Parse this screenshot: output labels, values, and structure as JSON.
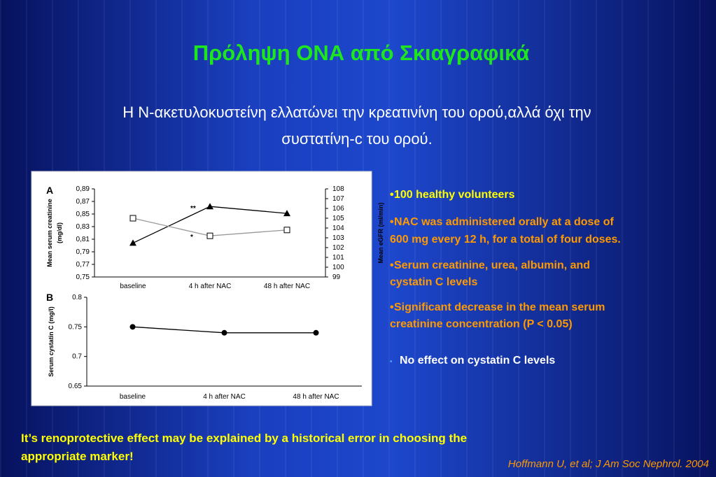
{
  "title": "Πρόληψη ΟΝΑ από Σκιαγραφικά",
  "subtitle": [
    "Η Ν-ακετυλοκυστείνη ελλατώνει την κρεατινίνη του ορού,αλλά όχι την",
    "συστατίνη-c του ορού."
  ],
  "chart_data": [
    {
      "type": "line",
      "panel_label": "A",
      "categories": [
        "baseline",
        "4 h after NAC",
        "48 h after NAC"
      ],
      "series": [
        {
          "color": "#000000",
          "marker": "triangle",
          "values": [
            0.804,
            0.862,
            0.851
          ]
        },
        {
          "color": "#999999",
          "marker": "square",
          "axis": "y2",
          "values": [
            105.0,
            103.2,
            103.8
          ]
        }
      ],
      "ylim": [
        0.75,
        0.89
      ],
      "yticks": [
        {
          "value": 0.75,
          "label": "0,75"
        },
        {
          "value": 0.77,
          "label": "0,77"
        },
        {
          "value": 0.79,
          "label": "0,79"
        },
        {
          "value": 0.81,
          "label": "0,81"
        },
        {
          "value": 0.83,
          "label": "0,83"
        },
        {
          "value": 0.85,
          "label": "0,85"
        },
        {
          "value": 0.87,
          "label": "0,87"
        },
        {
          "value": 0.89,
          "label": "0,89"
        }
      ],
      "y2lim": [
        99,
        108
      ],
      "y2ticks": [
        99,
        100,
        101,
        102,
        103,
        104,
        105,
        106,
        107,
        108
      ],
      "ylabel": [
        "Mean serum creatinine",
        "(mg/dl)"
      ],
      "y2label": "Mean eGFR (ml/min)",
      "annotations": [
        {
          "text": "**",
          "series": 0,
          "index": 1
        },
        {
          "text": "*",
          "series": 1,
          "index": 1
        }
      ]
    },
    {
      "type": "line",
      "panel_label": "B",
      "categories": [
        "baseline",
        "4 h after NAC",
        "48 h after NAC"
      ],
      "series": [
        {
          "color": "#000000",
          "marker": "circle",
          "values": [
            0.75,
            0.74,
            0.74
          ]
        }
      ],
      "ylim": [
        0.65,
        0.8
      ],
      "yticks": [
        0.65,
        0.7,
        0.75,
        0.8
      ],
      "ylabel": [
        "Serum cystatin C (mg/l)"
      ]
    }
  ],
  "bullets": [
    [
      "100   healthy volunteers"
    ],
    [
      "NAC was administered orally at a dose of",
      "600 mg every 12 h, for a total of four doses."
    ],
    [
      "Serum creatinine, urea, albumin, and",
      "cystatin C levels"
    ],
    [
      "Significant decrease in the mean serum",
      "creatinine concentration (P < 0.05)"
    ],
    [
      "No effect on cystatin C levels"
    ]
  ],
  "footer": [
    "It’s renoprotective effect may be explained by a historical error in choosing the",
    "appropriate marker!"
  ],
  "citation": "Hoffmann U, et al; J Am Soc Nephrol. 2004"
}
